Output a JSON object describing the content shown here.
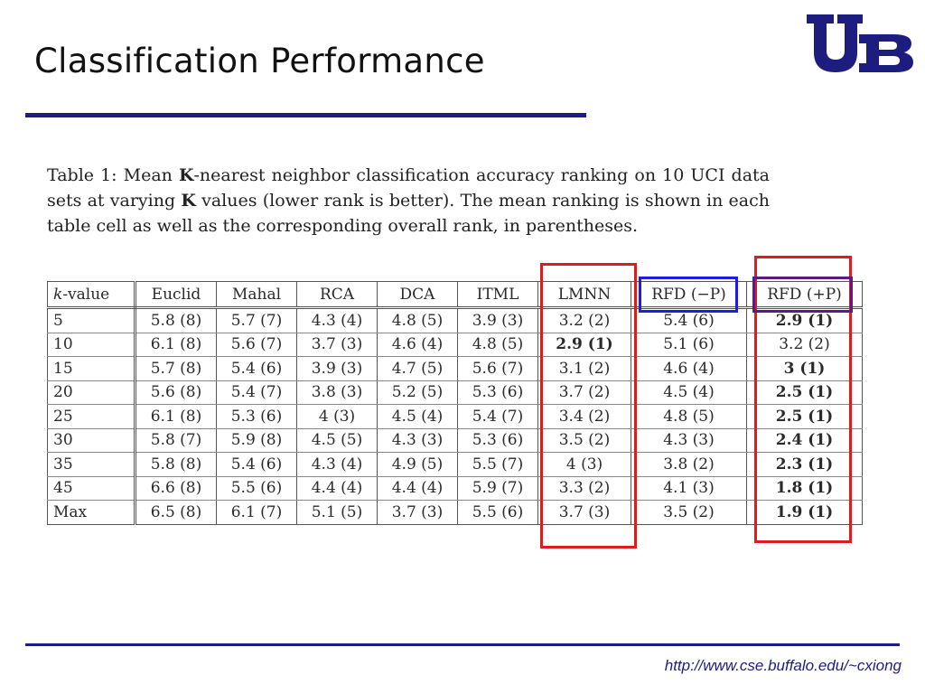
{
  "slide": {
    "title": "Classification Performance",
    "footer_url": "http://www.cse.buffalo.edu/~cxiong",
    "logo_text": "UB"
  },
  "caption": {
    "label": "Table 1:",
    "text_before_k1": "Mean",
    "k1": "K",
    "text_after_k1": "-nearest neighbor classification accuracy ranking on 10 UCI data sets at varying",
    "k2": "K",
    "text_after_k2": "values (lower rank is better). The mean ranking is shown in each table cell as well as the corresponding overall rank, in parentheses."
  },
  "table": {
    "headers": [
      "k-value",
      "Euclid",
      "Mahal",
      "RCA",
      "DCA",
      "ITML",
      "LMNN",
      "RFD (−P)",
      "RFD (+P)"
    ],
    "rows": [
      [
        "5",
        "5.8 (8)",
        "5.7 (7)",
        "4.3 (4)",
        "4.8 (5)",
        "3.9 (3)",
        "3.2 (2)",
        "5.4 (6)",
        "2.9 (1)"
      ],
      [
        "10",
        "6.1 (8)",
        "5.6 (7)",
        "3.7 (3)",
        "4.6 (4)",
        "4.8 (5)",
        "2.9 (1)",
        "5.1 (6)",
        "3.2 (2)"
      ],
      [
        "15",
        "5.7 (8)",
        "5.4 (6)",
        "3.9 (3)",
        "4.7 (5)",
        "5.6 (7)",
        "3.1 (2)",
        "4.6 (4)",
        "3 (1)"
      ],
      [
        "20",
        "5.6 (8)",
        "5.4 (7)",
        "3.8 (3)",
        "5.2 (5)",
        "5.3 (6)",
        "3.7 (2)",
        "4.5 (4)",
        "2.5 (1)"
      ],
      [
        "25",
        "6.1 (8)",
        "5.3 (6)",
        "4 (3)",
        "4.5 (4)",
        "5.4 (7)",
        "3.4 (2)",
        "4.8 (5)",
        "2.5 (1)"
      ],
      [
        "30",
        "5.8 (7)",
        "5.9 (8)",
        "4.5 (5)",
        "4.3 (3)",
        "5.3 (6)",
        "3.5 (2)",
        "4.3 (3)",
        "2.4 (1)"
      ],
      [
        "35",
        "5.8 (8)",
        "5.4 (6)",
        "4.3 (4)",
        "4.9 (5)",
        "5.5 (7)",
        "4 (3)",
        "3.8 (2)",
        "2.3 (1)"
      ],
      [
        "45",
        "6.6 (8)",
        "5.5 (6)",
        "4.4 (4)",
        "4.4 (4)",
        "5.9 (7)",
        "3.3 (2)",
        "4.1 (3)",
        "1.8 (1)"
      ],
      [
        "Max",
        "6.5 (8)",
        "6.1 (7)",
        "5.1 (5)",
        "3.7 (3)",
        "5.5 (6)",
        "3.7 (3)",
        "3.5 (2)",
        "1.9 (1)"
      ]
    ],
    "bold_cells": [
      [
        0,
        8
      ],
      [
        1,
        6
      ],
      [
        2,
        8
      ],
      [
        3,
        8
      ],
      [
        4,
        8
      ],
      [
        5,
        8
      ],
      [
        6,
        8
      ],
      [
        7,
        8
      ],
      [
        8,
        8
      ]
    ]
  },
  "colors": {
    "ub_blue": "#1d1d80",
    "highlight_red": "#e01b1b",
    "highlight_blue": "#1d1de0",
    "highlight_purple": "#5a1a8c"
  }
}
